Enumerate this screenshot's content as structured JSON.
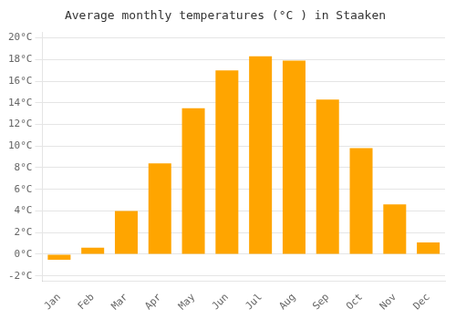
{
  "chart_data": {
    "type": "bar",
    "title": "Average monthly temperatures (°C ) in Staaken",
    "categories": [
      "Jan",
      "Feb",
      "Mar",
      "Apr",
      "May",
      "Jun",
      "Jul",
      "Aug",
      "Sep",
      "Oct",
      "Nov",
      "Dec"
    ],
    "values": [
      -0.5,
      0.6,
      4.0,
      8.4,
      13.5,
      17.0,
      18.3,
      17.9,
      14.3,
      9.8,
      4.6,
      1.1
    ],
    "color": "#FFA500",
    "ylim": [
      -2.5,
      20.5
    ],
    "yticks": [
      {
        "value": -2,
        "label": "-2°C"
      },
      {
        "value": 0,
        "label": "0°C"
      },
      {
        "value": 2,
        "label": "2°C"
      },
      {
        "value": 4,
        "label": "4°C"
      },
      {
        "value": 6,
        "label": "6°C"
      },
      {
        "value": 8,
        "label": "8°C"
      },
      {
        "value": 10,
        "label": "10°C"
      },
      {
        "value": 12,
        "label": "12°C"
      },
      {
        "value": 14,
        "label": "14°C"
      },
      {
        "value": 16,
        "label": "16°C"
      },
      {
        "value": 18,
        "label": "18°C"
      },
      {
        "value": 20,
        "label": "20°C"
      }
    ],
    "grid": true
  }
}
